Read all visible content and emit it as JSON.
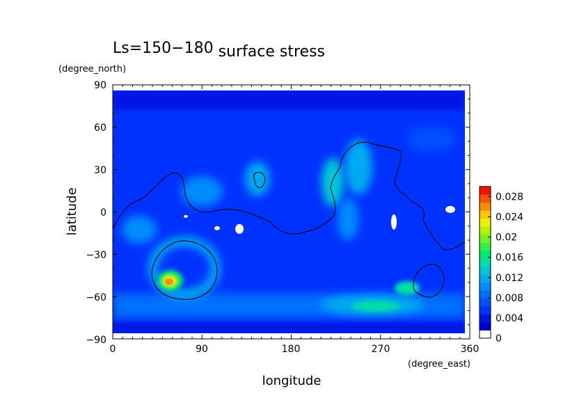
{
  "chart_data": {
    "type": "heatmap",
    "title_main": "Ls=150−180",
    "title_sub": "surface stress",
    "xlabel": "longitude",
    "ylabel": "latitude",
    "x_units": "(degree_east)",
    "y_units": "(degree_north)",
    "xlim": [
      0,
      360
    ],
    "ylim": [
      -90,
      90
    ],
    "x_ticks": [
      "0",
      "90",
      "180",
      "270",
      "360"
    ],
    "y_ticks": [
      "90",
      "60",
      "30",
      "0",
      "−30",
      "−60",
      "−90"
    ],
    "colorbar": {
      "range": [
        0,
        0.03
      ],
      "tick_labels": [
        "0",
        "0.004",
        "0.008",
        "0.012",
        "0.016",
        "0.02",
        "0.024",
        "0.028"
      ],
      "colors": [
        "#ffffff",
        "#0000c8",
        "#0014e6",
        "#0032ff",
        "#0050ff",
        "#006eff",
        "#008cff",
        "#00aaf0",
        "#00c8d2",
        "#00dcaa",
        "#00e678",
        "#32f046",
        "#78f028",
        "#b4f000",
        "#f0f000",
        "#ffc800",
        "#ff8c00",
        "#ff5000",
        "#f01400"
      ]
    },
    "grid": false,
    "features": [
      {
        "type": "hotspot",
        "lon": 55,
        "lat": -50,
        "value": 0.022
      },
      {
        "type": "ring",
        "lon": 75,
        "lat": -42,
        "value": 0.008
      },
      {
        "type": "band",
        "lon": [
          0,
          360
        ],
        "lat": [
          -70,
          -55
        ],
        "value": 0.009
      },
      {
        "type": "hotspot",
        "lon": 280,
        "lat": -53,
        "value": 0.013
      },
      {
        "type": "hotspot",
        "lon": 265,
        "lat": -62,
        "value": 0.011
      },
      {
        "type": "hotspot",
        "lon": 140,
        "lat": 22,
        "value": 0.009
      },
      {
        "type": "hotspot",
        "lon": 228,
        "lat": 22,
        "value": 0.011
      },
      {
        "type": "hotspot",
        "lon": 245,
        "lat": 38,
        "value": 0.008
      },
      {
        "type": "hotspot",
        "lon": 22,
        "lat": -15,
        "value": 0.008
      }
    ]
  }
}
